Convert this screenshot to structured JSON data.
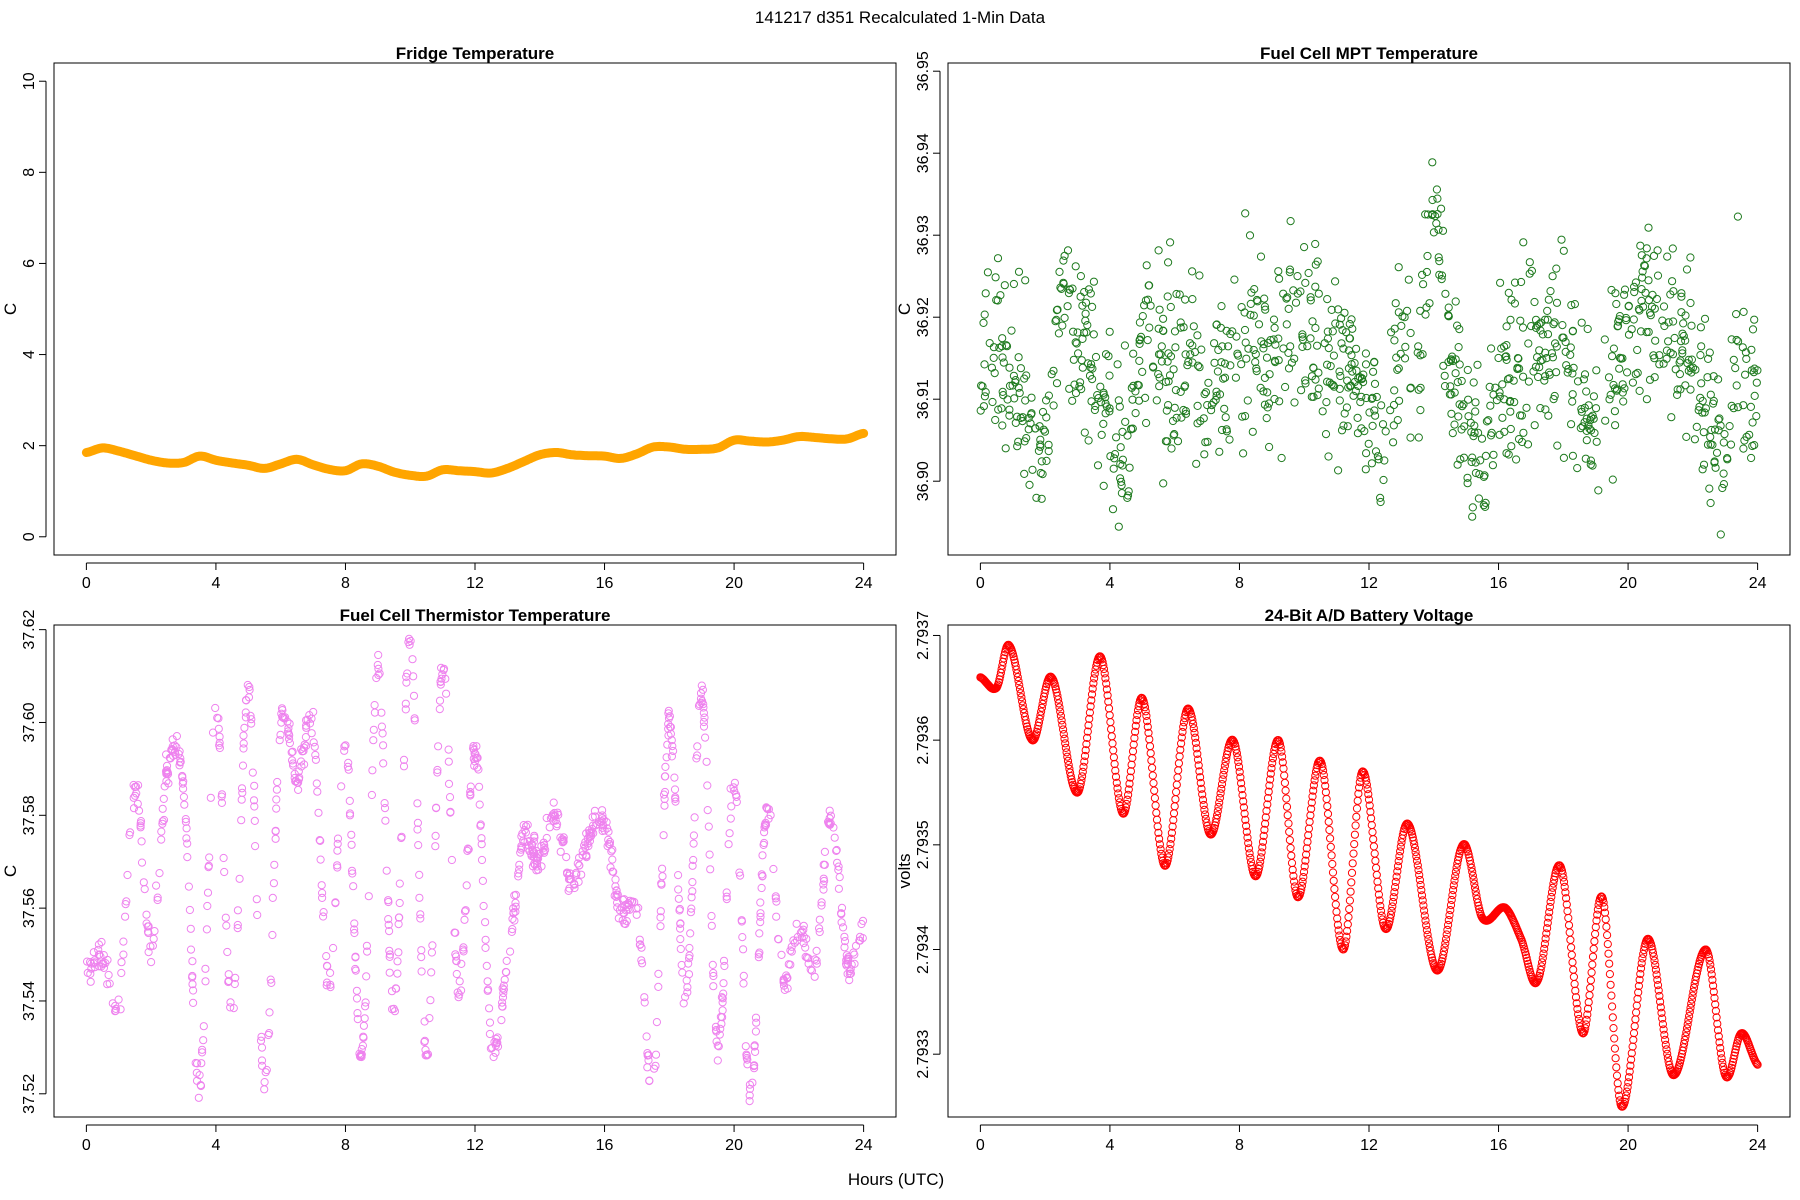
{
  "figure": {
    "title": "141217   d351   Recalculated 1-Min Data",
    "shared_xlabel": "Hours (UTC)"
  },
  "chart_data": [
    {
      "id": "fridge",
      "type": "line",
      "title": "Fridge Temperature",
      "ylabel": "C",
      "xlim": [
        -1,
        25
      ],
      "ylim": [
        -0.4,
        10.4
      ],
      "xticks": [
        0,
        4,
        8,
        12,
        16,
        20,
        24
      ],
      "yticks": [
        0,
        2,
        4,
        6,
        8,
        10
      ],
      "ytick_labels": [
        "0",
        "2",
        "4",
        "6",
        "8",
        "10"
      ],
      "color": "#FFA500",
      "series": [
        {
          "x": [
            0,
            0.5,
            1,
            1.5,
            2,
            2.5,
            3,
            3.5,
            4,
            4.5,
            5,
            5.5,
            6,
            6.5,
            7,
            7.5,
            8,
            8.5,
            9,
            9.5,
            10,
            10.5,
            11,
            11.5,
            12,
            12.5,
            13,
            13.5,
            14,
            14.5,
            15,
            15.5,
            16,
            16.5,
            17,
            17.5,
            18,
            18.5,
            19,
            19.5,
            20,
            20.5,
            21,
            21.5,
            22,
            22.5,
            23,
            23.5,
            24
          ],
          "y": [
            1.85,
            1.95,
            1.88,
            1.78,
            1.68,
            1.62,
            1.63,
            1.77,
            1.68,
            1.62,
            1.57,
            1.5,
            1.6,
            1.7,
            1.58,
            1.48,
            1.45,
            1.6,
            1.55,
            1.42,
            1.35,
            1.33,
            1.47,
            1.45,
            1.43,
            1.4,
            1.5,
            1.65,
            1.8,
            1.85,
            1.8,
            1.78,
            1.77,
            1.72,
            1.82,
            1.97,
            1.97,
            1.92,
            1.92,
            1.95,
            2.12,
            2.1,
            2.08,
            2.12,
            2.2,
            2.18,
            2.15,
            2.15,
            2.27
          ]
        }
      ]
    },
    {
      "id": "mpt",
      "type": "scatter",
      "title": "Fuel Cell MPT Temperature",
      "ylabel": "C",
      "xlim": [
        -1,
        25
      ],
      "ylim": [
        36.891,
        36.951
      ],
      "xticks": [
        0,
        4,
        8,
        12,
        16,
        20,
        24
      ],
      "yticks": [
        36.9,
        36.91,
        36.92,
        36.93,
        36.94,
        36.95
      ],
      "ytick_labels": [
        "36.90",
        "36.91",
        "36.92",
        "36.93",
        "36.94",
        "36.95"
      ],
      "color": "#1E7A1E",
      "series": [
        {
          "x": [
            0,
            0.5,
            1,
            1.5,
            2,
            2.5,
            3,
            3.5,
            4,
            4.5,
            5,
            5.5,
            6,
            6.5,
            7,
            7.5,
            8,
            8.5,
            9,
            9.5,
            10,
            10.5,
            11,
            11.5,
            12,
            12.5,
            13,
            13.5,
            14,
            14.5,
            15,
            15.5,
            16,
            16.5,
            17,
            17.5,
            18,
            18.5,
            19,
            19.5,
            20,
            20.5,
            21,
            21.5,
            22,
            22.5,
            23,
            23.5,
            24
          ],
          "y": [
            36.916,
            36.915,
            36.913,
            36.907,
            36.904,
            36.922,
            36.917,
            36.915,
            36.905,
            36.903,
            36.918,
            36.915,
            36.913,
            36.915,
            36.911,
            36.914,
            36.916,
            36.917,
            36.914,
            36.921,
            36.918,
            36.917,
            36.916,
            36.915,
            36.908,
            36.904,
            36.917,
            36.912,
            36.933,
            36.916,
            36.905,
            36.904,
            36.911,
            36.912,
            36.916,
            36.917,
            36.918,
            36.913,
            36.906,
            36.915,
            36.918,
            36.922,
            36.919,
            36.918,
            36.913,
            36.909,
            36.906,
            36.914,
            36.912
          ]
        }
      ],
      "x_extent": [
        0,
        24
      ],
      "y_extent": [
        36.8935,
        36.9495
      ]
    },
    {
      "id": "thermistor",
      "type": "scatter",
      "title": "Fuel Cell Thermistor Temperature",
      "ylabel": "C",
      "xlim": [
        -1,
        25
      ],
      "ylim": [
        37.515,
        37.621
      ],
      "xticks": [
        0,
        4,
        8,
        12,
        16,
        20,
        24
      ],
      "yticks": [
        37.52,
        37.54,
        37.56,
        37.58,
        37.6,
        37.62
      ],
      "ytick_labels": [
        "37.52",
        "37.54",
        "37.56",
        "37.58",
        "37.60",
        "37.62"
      ],
      "color": "#EE82EE",
      "series": [
        {
          "x": [
            0,
            0.5,
            1,
            1.5,
            2,
            2.5,
            3,
            3.5,
            4,
            4.5,
            5,
            5.5,
            6,
            6.5,
            7,
            7.5,
            8,
            8.5,
            9,
            9.5,
            10,
            10.5,
            11,
            11.5,
            12,
            12.5,
            13,
            13.5,
            14,
            14.5,
            15,
            15.5,
            16,
            16.5,
            17,
            17.5,
            18,
            18.5,
            19,
            19.5,
            20,
            20.5,
            21,
            21.5,
            22,
            22.5,
            23,
            23.5,
            24
          ],
          "y": [
            37.546,
            37.55,
            37.54,
            37.586,
            37.552,
            37.59,
            37.586,
            37.522,
            37.604,
            37.536,
            37.608,
            37.523,
            37.6,
            37.588,
            37.598,
            37.543,
            37.596,
            37.528,
            37.612,
            37.538,
            37.618,
            37.528,
            37.612,
            37.542,
            37.595,
            37.532,
            37.548,
            37.575,
            37.57,
            37.58,
            37.565,
            37.576,
            37.578,
            37.56,
            37.56,
            37.522,
            37.6,
            37.54,
            37.606,
            37.53,
            37.588,
            37.52,
            37.58,
            37.546,
            37.555,
            37.548,
            37.58,
            37.548,
            37.555
          ]
        }
      ],
      "x_extent": [
        0,
        24
      ],
      "y_extent": [
        37.5175,
        37.618
      ]
    },
    {
      "id": "battery",
      "type": "line",
      "title": "24-Bit A/D Battery Voltage",
      "ylabel": "volts",
      "xlim": [
        -1,
        25
      ],
      "ylim": [
        2.79324,
        2.79371
      ],
      "xticks": [
        0,
        4,
        8,
        12,
        16,
        20,
        24
      ],
      "yticks": [
        2.7933,
        2.7934,
        2.7935,
        2.7936,
        2.7937
      ],
      "ytick_labels": [
        "2.7933",
        "2.7934",
        "2.7935",
        "2.7936",
        "2.7937"
      ],
      "color": "#FF0000",
      "series": [
        {
          "x": [
            0,
            0.5,
            0.9,
            1.6,
            2.2,
            3.0,
            3.7,
            4.4,
            5.0,
            5.7,
            6.4,
            7.1,
            7.8,
            8.5,
            9.2,
            9.8,
            10.5,
            11.2,
            11.8,
            12.5,
            13.2,
            14.1,
            14.9,
            15.5,
            16.2,
            16.7,
            17.2,
            17.9,
            18.6,
            19.2,
            19.8,
            20.6,
            21.4,
            22.4,
            23.0,
            23.5,
            24.0
          ],
          "y": [
            2.79366,
            2.79365,
            2.79369,
            2.7936,
            2.79366,
            2.79355,
            2.79368,
            2.79353,
            2.79364,
            2.79348,
            2.79363,
            2.79351,
            2.7936,
            2.79347,
            2.7936,
            2.79345,
            2.79358,
            2.7934,
            2.79357,
            2.79342,
            2.79352,
            2.79338,
            2.7935,
            2.79343,
            2.79344,
            2.79341,
            2.79337,
            2.79348,
            2.79332,
            2.79345,
            2.79325,
            2.79341,
            2.79328,
            2.7934,
            2.79328,
            2.79332,
            2.79329
          ]
        }
      ]
    }
  ]
}
